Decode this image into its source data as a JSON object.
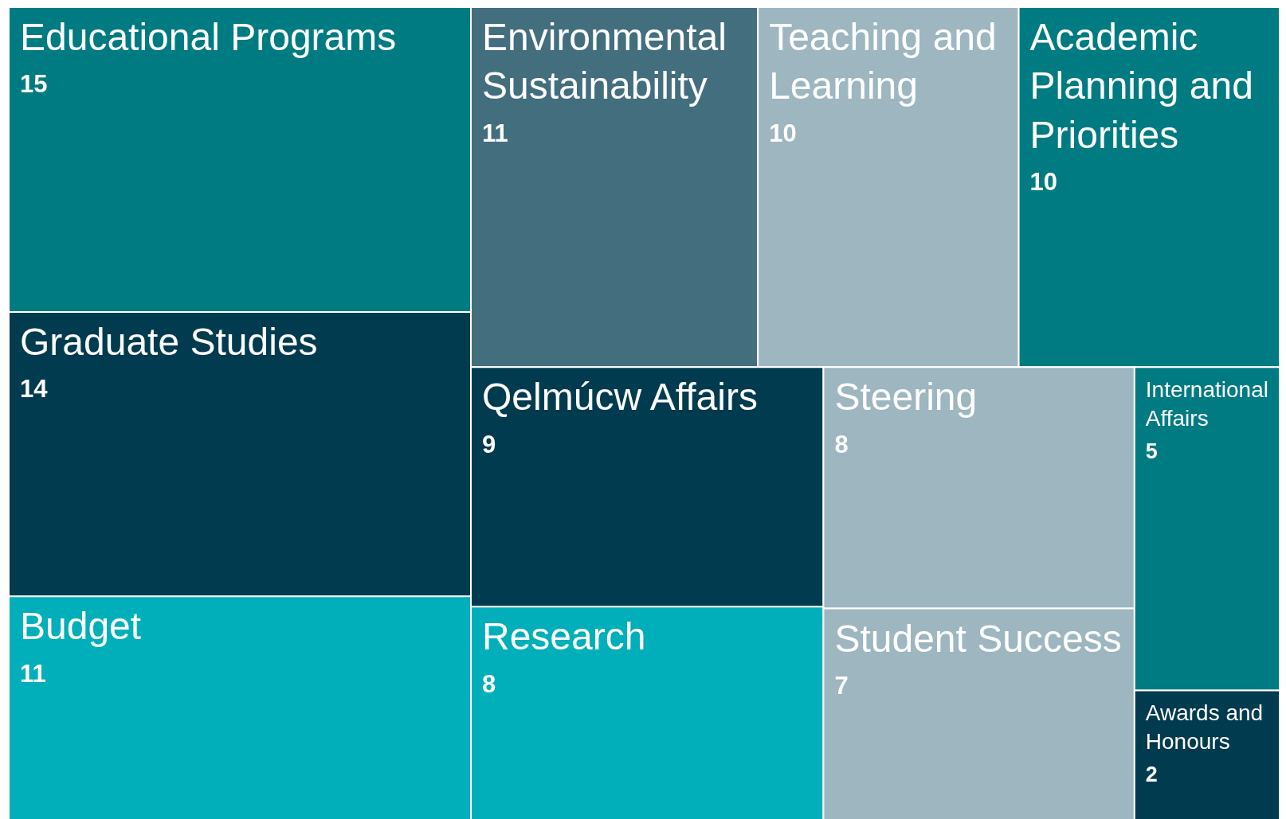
{
  "chart_data": {
    "type": "other",
    "categories": [
      "Educational Programs",
      "Graduate Studies",
      "Budget",
      "Environmental Sustainability",
      "Teaching and Learning",
      "Academic Planning and Priorities",
      "Qelmúcw Affairs",
      "Research",
      "Steering",
      "Student Success",
      "International Affairs",
      "Awards and Honours"
    ],
    "values": [
      15,
      14,
      11,
      11,
      10,
      10,
      9,
      8,
      8,
      7,
      5,
      2
    ],
    "colors": [
      "#007b82",
      "#003b4f",
      "#00afb9",
      "#436e7e",
      "#9db6c0",
      "#007b82",
      "#003b4f",
      "#00afb9",
      "#9db6c0",
      "#9db6c0",
      "#007b82",
      "#003b4f"
    ],
    "data_labels": true
  }
}
